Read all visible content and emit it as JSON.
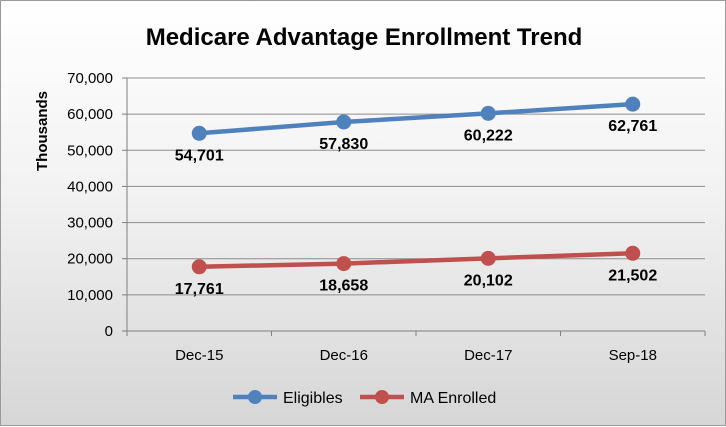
{
  "chart_data": {
    "type": "line",
    "title": "Medicare Advantage Enrollment Trend",
    "xlabel": "",
    "ylabel": "Thousands",
    "categories": [
      "Dec-15",
      "Dec-16",
      "Dec-17",
      "Sep-18"
    ],
    "series": [
      {
        "name": "Eligibles",
        "values": [
          54701,
          57830,
          60222,
          62761
        ],
        "labels": [
          "54,701",
          "57,830",
          "60,222",
          "62,761"
        ],
        "color": "#4F81BD"
      },
      {
        "name": "MA Enrolled",
        "values": [
          17761,
          18658,
          20102,
          21502
        ],
        "labels": [
          "17,761",
          "18,658",
          "20,102",
          "21,502"
        ],
        "color": "#C0504D"
      }
    ],
    "ylim": [
      0,
      70000
    ],
    "yticks": [
      0,
      10000,
      20000,
      30000,
      40000,
      50000,
      60000,
      70000
    ],
    "ytick_labels": [
      "0",
      "10,000",
      "20,000",
      "30,000",
      "40,000",
      "50,000",
      "60,000",
      "70,000"
    ],
    "grid": true,
    "legend": "bottom-center"
  }
}
